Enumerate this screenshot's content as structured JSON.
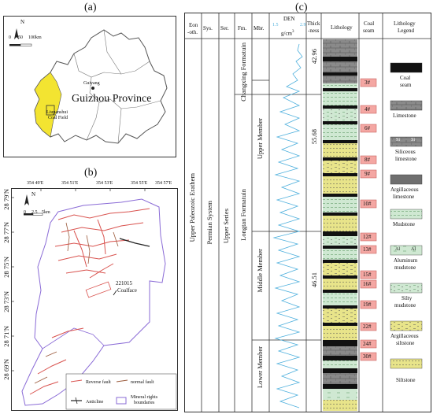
{
  "panel_a": {
    "label": "(a)",
    "north": "N",
    "scale_ticks": [
      "0",
      "50",
      "100km"
    ],
    "province_label": "Guizhou Province",
    "city_label": "Guiyang",
    "coalfield_label_1": "Liupanshui",
    "coalfield_label_2": "Coal Field"
  },
  "panel_b": {
    "label": "(b)",
    "x_ticks": [
      "354 49'E",
      "354 51'E",
      "354 53'E",
      "354 55'E",
      "354 57'E"
    ],
    "y_ticks": [
      "28 79'N",
      "28 77'N",
      "28 75'N",
      "28 73'N",
      "28 71'N",
      "28 69'N"
    ],
    "north": "N",
    "scale_ticks": [
      "0",
      "2.5",
      "5km"
    ],
    "coalface_id": "221015",
    "coalface_label": "Coalface",
    "legend": {
      "reverse_fault": "Reverse fault",
      "normal_fault": "normal fault",
      "anticline": "Anticline",
      "mineral_rights_1": "Mineral rights",
      "mineral_rights_2": "boundaries"
    }
  },
  "panel_c": {
    "label": "(c)",
    "headers": {
      "eon_1": "Eon",
      "eon_2": "-oth.",
      "sys": "Sys.",
      "ser": "Ser.",
      "fm": "Fm.",
      "mbr": "Mbr.",
      "den": "DEN",
      "den_min": "1.5",
      "den_max": "2.9",
      "den_unit": "g/cm",
      "den_unit_sup": "3",
      "thick_1": "Thick",
      "thick_2": "-ness",
      "lithology": "Lithology",
      "coal_1": "Coal",
      "coal_2": "seam",
      "legend_1": "Lithology",
      "legend_2": "Legend"
    },
    "columns": {
      "eon": "Upper   Paleozoic   Erathem",
      "sys": "Permian  System",
      "ser": "Upper   Series",
      "fm_changxing": "Changxing Formatuin",
      "fm_longtan": "Longtan    Formatuin",
      "mbr_upper": "Upper Member",
      "mbr_middle": "Middle Member",
      "mbr_lower": "Lower Member"
    },
    "thickness": [
      "42.96",
      "55.68",
      "46.51"
    ],
    "coal_seams": [
      "3#",
      "4#",
      "6#",
      "8#",
      "9#",
      "10#",
      "12#",
      "13#",
      "15#",
      "16#",
      "19#",
      "22#",
      "24#",
      "30#"
    ],
    "legend_items": [
      {
        "label_1": "Coal",
        "label_2": "seam",
        "pattern": "coal"
      },
      {
        "label_1": "Limestone",
        "label_2": "",
        "pattern": "limestone"
      },
      {
        "label_1": "Siliceous",
        "label_2": "limestone",
        "pattern": "siliceous"
      },
      {
        "label_1": "Argillaceous",
        "label_2": "limestone",
        "pattern": "arg-limestone"
      },
      {
        "label_1": "Mudstone",
        "label_2": "",
        "pattern": "mudstone"
      },
      {
        "label_1": "Aluminum",
        "label_2": "mudstone",
        "pattern": "al-mudstone"
      },
      {
        "label_1": "Silty",
        "label_2": "mudstone",
        "pattern": "silty-mudstone"
      },
      {
        "label_1": "Argillaceous",
        "label_2": "siltstone",
        "pattern": "arg-siltstone"
      },
      {
        "label_1": "Siltstone",
        "label_2": "",
        "pattern": "siltstone"
      }
    ],
    "legend_marks": {
      "si": "Si",
      "al": "Al"
    },
    "colors": {
      "coal": "#111111",
      "limestone": "#8a8a8a",
      "mudstone": "#cfe8d2",
      "siltstone": "#e8e48a",
      "seam_box": "#f4a7a3",
      "den_curve": "#4fb0dd"
    }
  }
}
